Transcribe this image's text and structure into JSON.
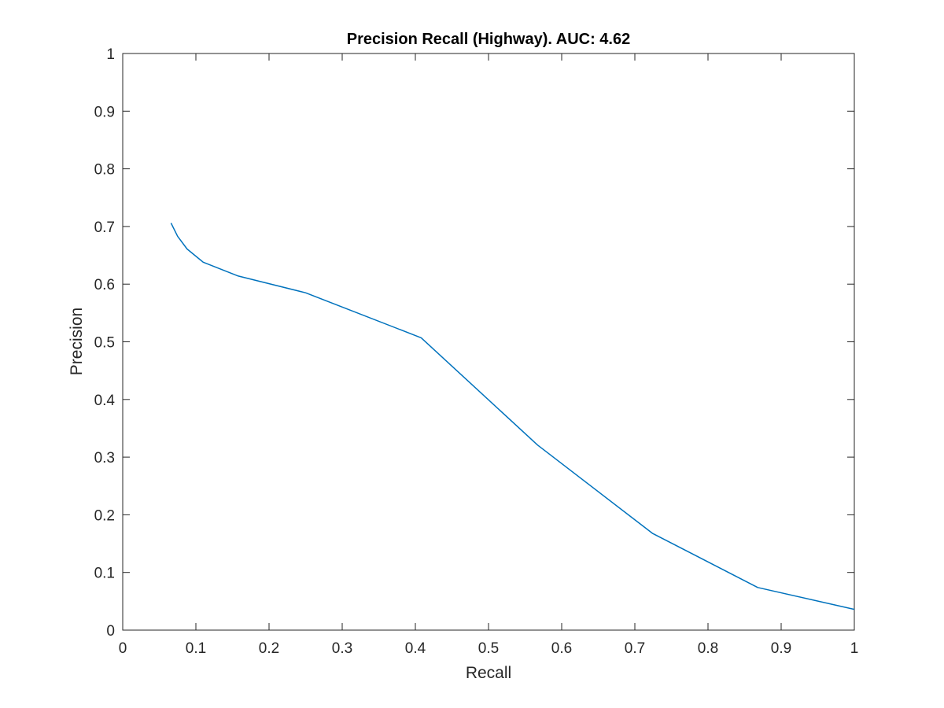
{
  "chart_data": {
    "type": "line",
    "title": "Precision Recall (Highway). AUC: 4.62",
    "xlabel": "Recall",
    "ylabel": "Precision",
    "xlim": [
      0,
      1
    ],
    "ylim": [
      0,
      1
    ],
    "x_ticks": [
      "0",
      "0.1",
      "0.2",
      "0.3",
      "0.4",
      "0.5",
      "0.6",
      "0.7",
      "0.8",
      "0.9",
      "1"
    ],
    "y_ticks": [
      "0",
      "0.1",
      "0.2",
      "0.3",
      "0.4",
      "0.5",
      "0.6",
      "0.7",
      "0.8",
      "0.9",
      "1"
    ],
    "grid": false,
    "box": true,
    "series": [
      {
        "color": "#0072bd",
        "x": [
          0.066,
          0.075,
          0.088,
          0.11,
          0.158,
          0.25,
          0.408,
          0.567,
          0.724,
          0.868,
          1.0
        ],
        "y": [
          0.706,
          0.683,
          0.661,
          0.638,
          0.614,
          0.585,
          0.507,
          0.321,
          0.168,
          0.074,
          0.036
        ]
      }
    ]
  }
}
